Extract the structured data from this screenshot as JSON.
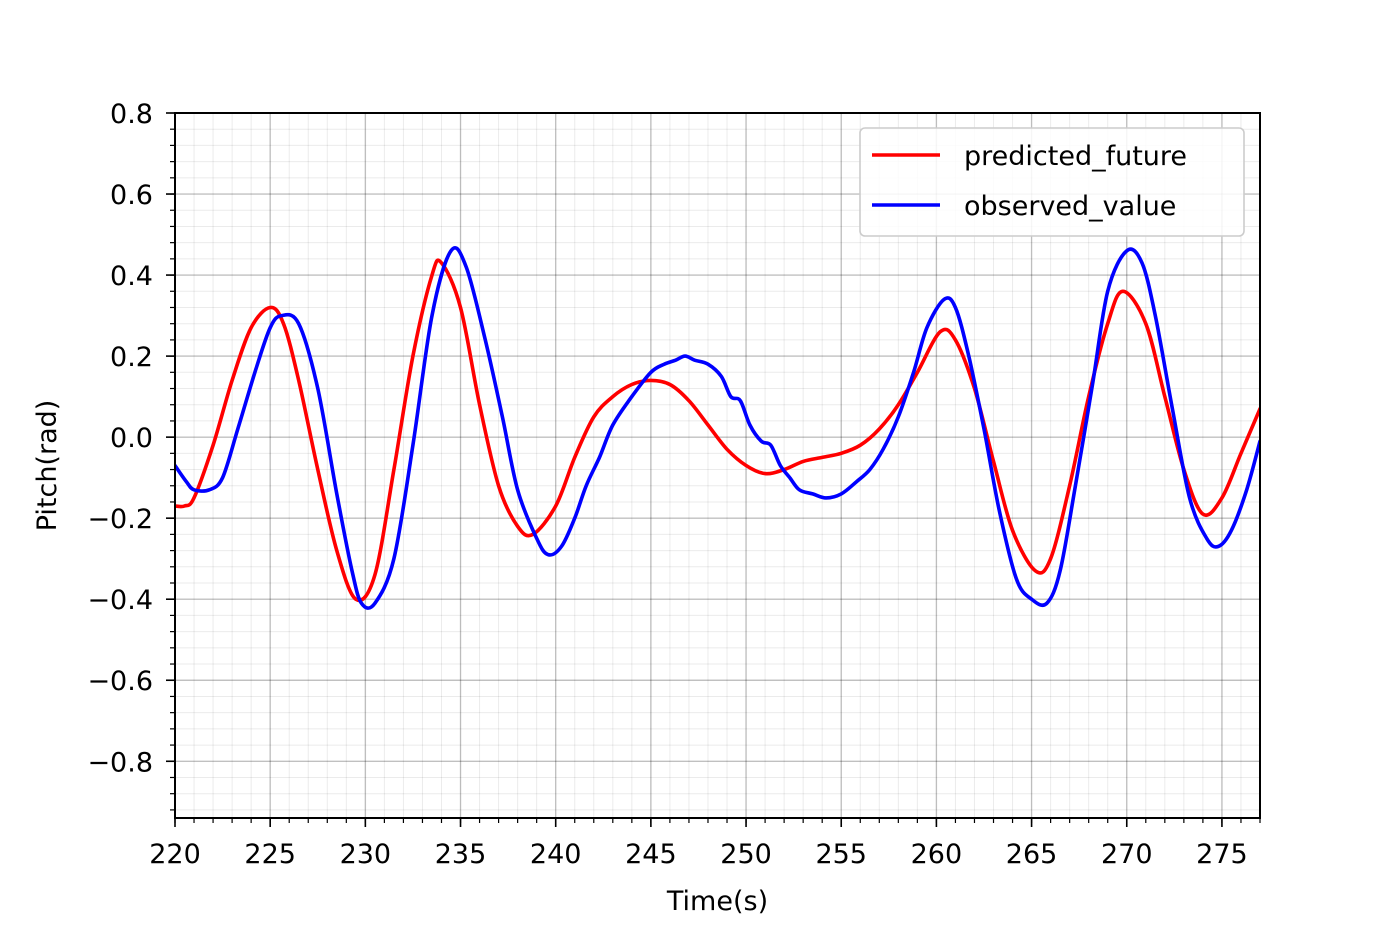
{
  "chart_data": {
    "type": "line",
    "xlabel": "Time(s)",
    "ylabel": "Pitch(rad)",
    "xlim": [
      220,
      277
    ],
    "ylim": [
      -0.94,
      0.8
    ],
    "x_ticks": [
      220,
      225,
      230,
      235,
      240,
      245,
      250,
      255,
      260,
      265,
      270,
      275
    ],
    "x_tick_labels": [
      "220",
      "225",
      "230",
      "235",
      "240",
      "245",
      "250",
      "255",
      "260",
      "265",
      "270",
      "275"
    ],
    "y_ticks": [
      0.8,
      0.6,
      0.4,
      0.2,
      0.0,
      -0.2,
      -0.4,
      -0.6,
      -0.8
    ],
    "y_tick_labels": [
      "0.8",
      "0.6",
      "0.4",
      "0.2",
      "0.0",
      "−0.2",
      "−0.4",
      "−0.6",
      "−0.8"
    ],
    "grid": true,
    "minor_grid": true,
    "legend_position": "top-right",
    "series": [
      {
        "name": "predicted_future",
        "color": "#ff0000",
        "x": [
          220,
          220.5,
          221,
          222,
          223,
          224,
          225,
          225.7,
          226.5,
          227.5,
          228.5,
          229.5,
          230.5,
          231.5,
          232.5,
          233.5,
          234,
          235,
          236,
          237,
          238,
          238.8,
          240,
          241,
          242,
          243,
          244,
          245,
          246,
          247,
          248,
          249,
          250,
          251,
          252,
          253,
          254,
          255,
          256,
          257,
          258,
          259,
          260.2,
          261,
          262,
          263,
          264,
          265.2,
          266,
          267,
          268,
          269,
          269.8,
          271,
          272,
          273,
          274,
          275,
          276,
          277
        ],
        "y": [
          -0.17,
          -0.17,
          -0.15,
          -0.02,
          0.14,
          0.27,
          0.32,
          0.28,
          0.14,
          -0.08,
          -0.28,
          -0.4,
          -0.34,
          -0.08,
          0.2,
          0.4,
          0.43,
          0.32,
          0.08,
          -0.12,
          -0.22,
          -0.24,
          -0.17,
          -0.05,
          0.05,
          0.1,
          0.13,
          0.14,
          0.13,
          0.09,
          0.03,
          -0.03,
          -0.07,
          -0.09,
          -0.08,
          -0.06,
          -0.05,
          -0.04,
          -0.02,
          0.02,
          0.08,
          0.16,
          0.26,
          0.24,
          0.12,
          -0.06,
          -0.23,
          -0.33,
          -0.3,
          -0.12,
          0.1,
          0.28,
          0.36,
          0.28,
          0.1,
          -0.08,
          -0.19,
          -0.15,
          -0.04,
          0.07
        ]
      },
      {
        "name": "observed_value",
        "color": "#0000ff",
        "x": [
          220,
          220.6,
          221,
          221.8,
          222.5,
          223.3,
          224.2,
          225,
          225.6,
          226.5,
          227.5,
          228.5,
          229.3,
          229.8,
          230.5,
          231.5,
          232.5,
          233.5,
          234.5,
          235.3,
          236.3,
          237.2,
          238,
          239,
          239.6,
          240.3,
          241,
          241.6,
          242.3,
          243,
          244,
          245,
          245.7,
          246.3,
          246.8,
          247.3,
          248,
          248.7,
          249.2,
          249.7,
          250.2,
          250.8,
          251.3,
          251.8,
          252.3,
          252.8,
          253.5,
          254.2,
          255,
          255.8,
          256.5,
          257.2,
          258,
          258.8,
          259.5,
          260.4,
          261,
          261.7,
          262.5,
          263.3,
          264.2,
          265,
          265.8,
          266.5,
          267.3,
          268.2,
          269,
          270,
          270.8,
          271.5,
          272.4,
          273.3,
          274.2,
          274.8,
          275.5,
          276.3,
          277
        ],
        "y": [
          -0.07,
          -0.11,
          -0.13,
          -0.13,
          -0.1,
          0.02,
          0.16,
          0.27,
          0.3,
          0.28,
          0.12,
          -0.14,
          -0.33,
          -0.41,
          -0.41,
          -0.3,
          -0.02,
          0.3,
          0.46,
          0.42,
          0.24,
          0.05,
          -0.13,
          -0.25,
          -0.29,
          -0.27,
          -0.2,
          -0.12,
          -0.05,
          0.03,
          0.1,
          0.16,
          0.18,
          0.19,
          0.2,
          0.19,
          0.18,
          0.15,
          0.1,
          0.09,
          0.03,
          -0.01,
          -0.02,
          -0.07,
          -0.1,
          -0.13,
          -0.14,
          -0.15,
          -0.14,
          -0.11,
          -0.08,
          -0.03,
          0.05,
          0.16,
          0.27,
          0.34,
          0.32,
          0.2,
          0.02,
          -0.18,
          -0.35,
          -0.4,
          -0.41,
          -0.33,
          -0.12,
          0.13,
          0.36,
          0.46,
          0.43,
          0.3,
          0.07,
          -0.15,
          -0.25,
          -0.27,
          -0.23,
          -0.13,
          -0.01
        ]
      }
    ]
  }
}
